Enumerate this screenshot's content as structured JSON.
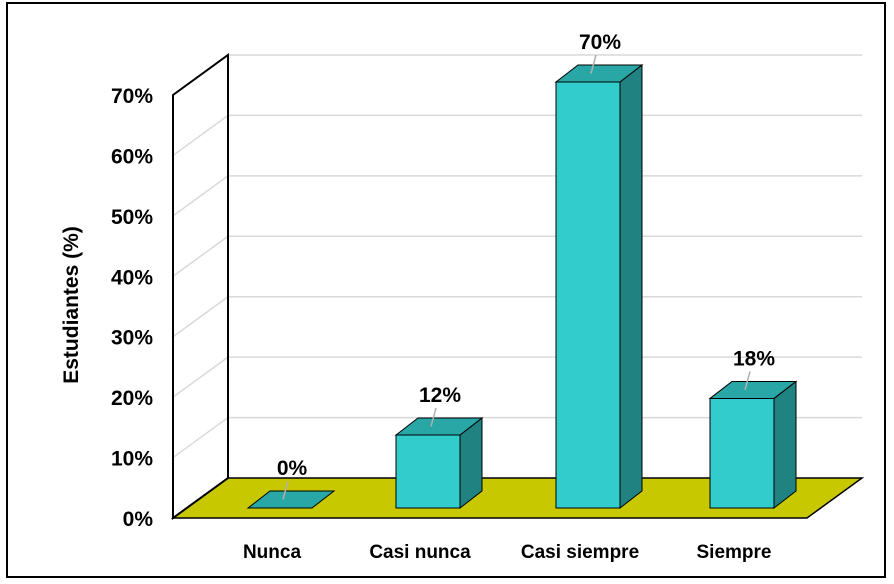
{
  "chart_data": {
    "type": "bar",
    "title": "",
    "xlabel": "",
    "ylabel": "Estudiantes (%)",
    "categories": [
      "Nunca",
      "Casi nunca",
      "Casi siempre",
      "Siempre"
    ],
    "values": [
      0,
      12,
      70,
      18
    ],
    "value_labels": [
      "0%",
      "12%",
      "70%",
      "18%"
    ],
    "ylim": [
      0,
      70
    ],
    "yticks": [
      0,
      10,
      20,
      30,
      40,
      50,
      60,
      70
    ],
    "ytick_labels": [
      "0%",
      "10%",
      "20%",
      "30%",
      "40%",
      "50%",
      "60%",
      "70%"
    ],
    "grid": true,
    "three_d": true,
    "colors": {
      "bar_front": "#33cccc",
      "bar_side": "#218282",
      "bar_top": "#29a6a6",
      "floor": "#c8c800",
      "grid": "#d9d9d9",
      "axis": "#000000"
    }
  }
}
